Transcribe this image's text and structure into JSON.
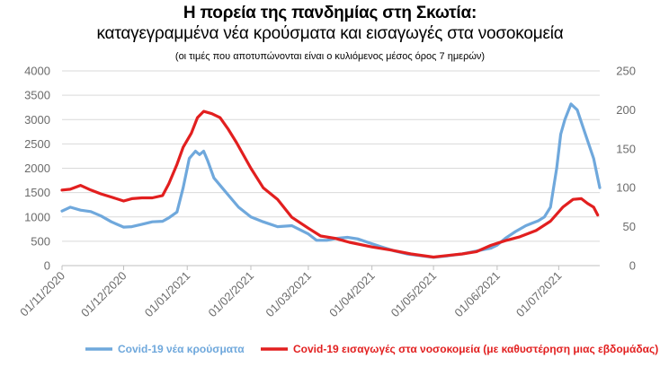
{
  "chart_data": {
    "type": "line",
    "title": "Η πορεία της πανδημίας στη Σκωτία:",
    "subtitle": "καταγεγραμμένα νέα κρούσματα και εισαγωγές στα νοσοκομεία",
    "note": "(οι τιμές που αποτυπώνονται είναι ο κυλιόμενος μέσος όρος 7 ημερών)",
    "x_tick_labels": [
      "01/11/2020",
      "01/12/2020",
      "01/01/2021",
      "01/02/2021",
      "01/03/2021",
      "01/04/2021",
      "01/05/2021",
      "01/06/2021",
      "01/07/2021"
    ],
    "x_range": [
      "2020-11-01",
      "2021-07-21"
    ],
    "y_left": {
      "ylim": [
        0,
        4000
      ],
      "ticks": [
        0,
        500,
        1000,
        1500,
        2000,
        2500,
        3000,
        3500,
        4000
      ]
    },
    "y_right": {
      "ylim": [
        0,
        250
      ],
      "ticks": [
        0,
        50,
        100,
        150,
        200,
        250
      ]
    },
    "grid": true,
    "legend_position": "bottom",
    "series": [
      {
        "name": "Covid-19 νέα κρούσματα",
        "axis": "left",
        "color": "#6fa8dc",
        "x": [
          "2020-11-01",
          "2020-11-05",
          "2020-11-10",
          "2020-11-15",
          "2020-11-20",
          "2020-11-25",
          "2020-12-01",
          "2020-12-05",
          "2020-12-10",
          "2020-12-15",
          "2020-12-20",
          "2020-12-23",
          "2020-12-27",
          "2020-12-30",
          "2021-01-02",
          "2021-01-05",
          "2021-01-07",
          "2021-01-09",
          "2021-01-11",
          "2021-01-14",
          "2021-01-18",
          "2021-01-22",
          "2021-01-26",
          "2021-02-01",
          "2021-02-07",
          "2021-02-14",
          "2021-02-21",
          "2021-03-01",
          "2021-03-05",
          "2021-03-10",
          "2021-03-15",
          "2021-03-20",
          "2021-03-25",
          "2021-04-01",
          "2021-04-06",
          "2021-04-12",
          "2021-04-18",
          "2021-04-25",
          "2021-05-01",
          "2021-05-08",
          "2021-05-15",
          "2021-05-22",
          "2021-05-29",
          "2021-06-01",
          "2021-06-05",
          "2021-06-10",
          "2021-06-15",
          "2021-06-18",
          "2021-06-21",
          "2021-06-24",
          "2021-06-27",
          "2021-06-30",
          "2021-07-02",
          "2021-07-04",
          "2021-07-07",
          "2021-07-10",
          "2021-07-14",
          "2021-07-18",
          "2021-07-21"
        ],
        "values": [
          1120,
          1200,
          1140,
          1110,
          1020,
          900,
          790,
          800,
          850,
          900,
          910,
          980,
          1100,
          1600,
          2200,
          2350,
          2280,
          2350,
          2150,
          1800,
          1600,
          1400,
          1200,
          1000,
          900,
          800,
          820,
          650,
          520,
          520,
          560,
          580,
          550,
          450,
          380,
          300,
          240,
          200,
          170,
          200,
          240,
          300,
          360,
          420,
          560,
          700,
          820,
          870,
          920,
          1000,
          1200,
          2000,
          2700,
          3000,
          3320,
          3200,
          2700,
          2200,
          1600
        ]
      },
      {
        "name": "Covid-19 εισαγωγές στα νοσοκομεία (με καθυστέρηση μιας εβδομάδας)",
        "axis": "right",
        "color": "#e21f1f",
        "x": [
          "2020-11-01",
          "2020-11-05",
          "2020-11-10",
          "2020-11-15",
          "2020-11-20",
          "2020-11-25",
          "2020-12-01",
          "2020-12-05",
          "2020-12-10",
          "2020-12-15",
          "2020-12-20",
          "2020-12-23",
          "2020-12-27",
          "2020-12-30",
          "2021-01-03",
          "2021-01-06",
          "2021-01-09",
          "2021-01-13",
          "2021-01-17",
          "2021-01-21",
          "2021-01-25",
          "2021-02-01",
          "2021-02-07",
          "2021-02-14",
          "2021-02-21",
          "2021-03-01",
          "2021-03-07",
          "2021-03-14",
          "2021-03-21",
          "2021-04-01",
          "2021-04-10",
          "2021-04-20",
          "2021-05-01",
          "2021-05-08",
          "2021-05-15",
          "2021-05-22",
          "2021-05-29",
          "2021-06-05",
          "2021-06-12",
          "2021-06-20",
          "2021-06-27",
          "2021-07-03",
          "2021-07-08",
          "2021-07-12",
          "2021-07-15",
          "2021-07-18",
          "2021-07-20"
        ],
        "values": [
          97,
          98,
          103,
          97,
          92,
          88,
          83,
          86,
          87,
          87,
          90,
          105,
          130,
          152,
          170,
          190,
          198,
          195,
          190,
          175,
          158,
          125,
          100,
          85,
          62,
          48,
          38,
          35,
          30,
          24,
          20,
          15,
          11,
          13,
          15,
          18,
          26,
          32,
          37,
          45,
          57,
          75,
          85,
          86,
          80,
          75,
          65
        ]
      }
    ]
  }
}
